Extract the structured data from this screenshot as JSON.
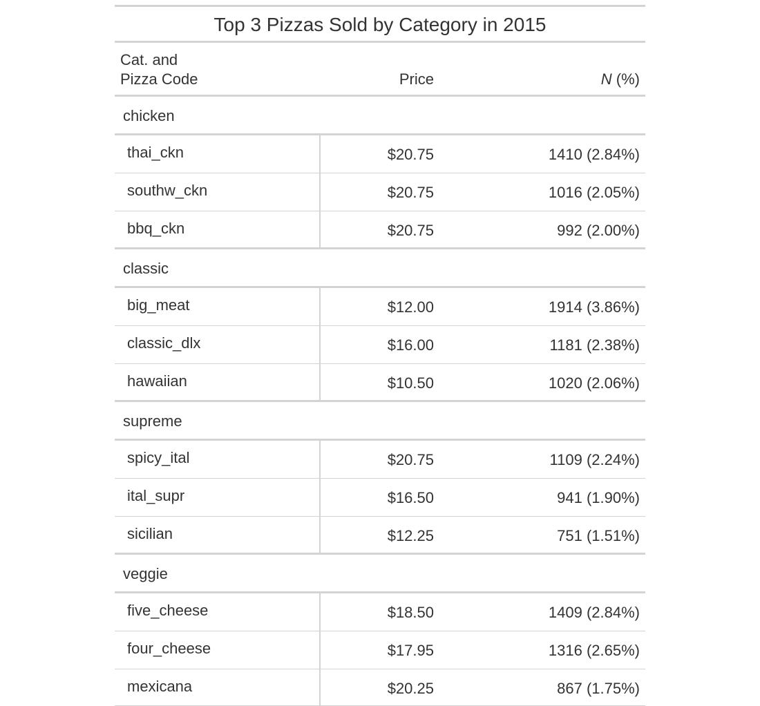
{
  "table": {
    "title": "Top 3 Pizzas Sold by Category in 2015",
    "columns": {
      "stub_line1": "Cat. and",
      "stub_line2": "Pizza Code",
      "price": "Price",
      "n_italic": "N",
      "n_rest": " (%)"
    },
    "groups": [
      {
        "name": "chicken",
        "rows": [
          {
            "code": "thai_ckn",
            "price": "$20.75",
            "n": "1410 (2.84%)"
          },
          {
            "code": "southw_ckn",
            "price": "$20.75",
            "n": "1016 (2.05%)"
          },
          {
            "code": "bbq_ckn",
            "price": "$20.75",
            "n": "992 (2.00%)"
          }
        ]
      },
      {
        "name": "classic",
        "rows": [
          {
            "code": "big_meat",
            "price": "$12.00",
            "n": "1914 (3.86%)"
          },
          {
            "code": "classic_dlx",
            "price": "$16.00",
            "n": "1181 (2.38%)"
          },
          {
            "code": "hawaiian",
            "price": "$10.50",
            "n": "1020 (2.06%)"
          }
        ]
      },
      {
        "name": "supreme",
        "rows": [
          {
            "code": "spicy_ital",
            "price": "$20.75",
            "n": "1109 (2.24%)"
          },
          {
            "code": "ital_supr",
            "price": "$16.50",
            "n": "941 (1.90%)"
          },
          {
            "code": "sicilian",
            "price": "$12.25",
            "n": "751 (1.51%)"
          }
        ]
      },
      {
        "name": "veggie",
        "rows": [
          {
            "code": "five_cheese",
            "price": "$18.50",
            "n": "1409 (2.84%)"
          },
          {
            "code": "four_cheese",
            "price": "$17.95",
            "n": "1316 (2.65%)"
          },
          {
            "code": "mexicana",
            "price": "$20.25",
            "n": "867 (1.75%)"
          }
        ]
      }
    ]
  }
}
